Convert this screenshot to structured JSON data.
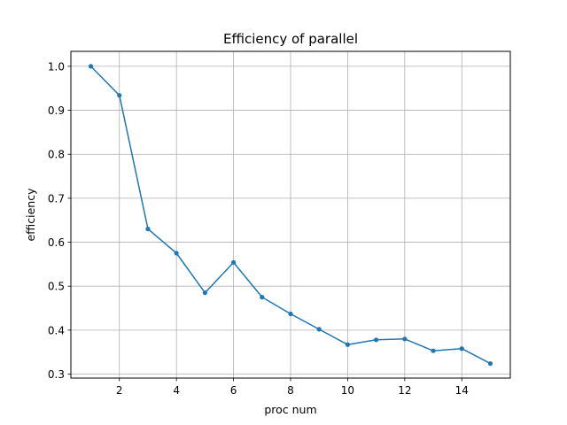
{
  "chart_data": {
    "type": "line",
    "title": "Efficiency of parallel",
    "xlabel": "proc num",
    "ylabel": "efficiency",
    "xlim": [
      0.3,
      15.7
    ],
    "ylim": [
      0.291,
      1.034
    ],
    "xticks": [
      2,
      4,
      6,
      8,
      10,
      12,
      14
    ],
    "xtick_labels": [
      "2",
      "4",
      "6",
      "8",
      "10",
      "12",
      "14"
    ],
    "yticks": [
      0.3,
      0.4,
      0.5,
      0.6,
      0.7,
      0.8,
      0.9,
      1.0
    ],
    "ytick_labels": [
      "0.3",
      "0.4",
      "0.5",
      "0.6",
      "0.7",
      "0.8",
      "0.9",
      "1.0"
    ],
    "grid": true,
    "series": [
      {
        "color": "#1f77b4",
        "marker": "circle",
        "x": [
          1,
          2,
          3,
          4,
          5,
          6,
          7,
          8,
          9,
          10,
          11,
          12,
          13,
          14,
          15
        ],
        "y": [
          1.0,
          0.934,
          0.63,
          0.575,
          0.485,
          0.554,
          0.475,
          0.437,
          0.402,
          0.367,
          0.378,
          0.38,
          0.353,
          0.358,
          0.324
        ]
      }
    ]
  }
}
